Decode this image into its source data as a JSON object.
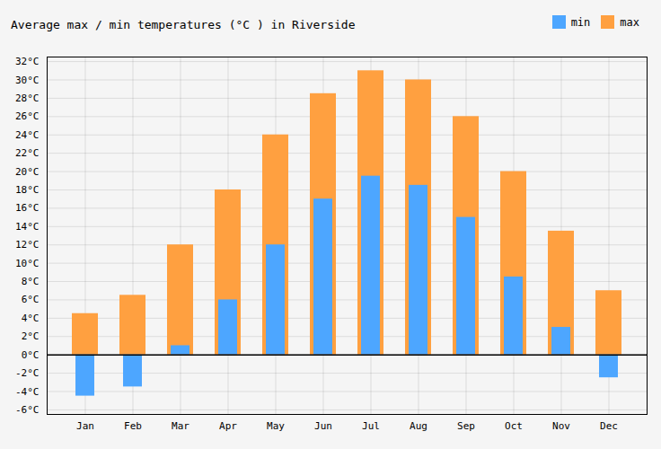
{
  "chart_data": {
    "type": "bar",
    "title": "Average max / min temperatures (°C ) in Riverside",
    "categories": [
      "Jan",
      "Feb",
      "Mar",
      "Apr",
      "May",
      "Jun",
      "Jul",
      "Aug",
      "Sep",
      "Oct",
      "Nov",
      "Dec"
    ],
    "series": [
      {
        "name": "min",
        "color": "#4da6ff",
        "values": [
          -4.5,
          -3.5,
          1,
          6,
          12,
          17,
          19.5,
          18.5,
          15,
          8.5,
          3,
          -2.5
        ]
      },
      {
        "name": "max",
        "color": "#ffa040",
        "values": [
          4.5,
          6.5,
          12,
          18,
          24,
          28.5,
          31,
          30,
          26,
          20,
          13.5,
          7
        ]
      }
    ],
    "ylim": [
      -6.5,
      32.5
    ],
    "yticks": [
      {
        "value": -6,
        "label": "-6°C"
      },
      {
        "value": -4,
        "label": "-4°C"
      },
      {
        "value": -2,
        "label": "-2°C"
      },
      {
        "value": 0,
        "label": "0°C"
      },
      {
        "value": 2,
        "label": "2°C"
      },
      {
        "value": 4,
        "label": "4°C"
      },
      {
        "value": 6,
        "label": "6°C"
      },
      {
        "value": 8,
        "label": "8°C"
      },
      {
        "value": 10,
        "label": "10°C"
      },
      {
        "value": 12,
        "label": "12°C"
      },
      {
        "value": 14,
        "label": "14°C"
      },
      {
        "value": 16,
        "label": "16°C"
      },
      {
        "value": 18,
        "label": "18°C"
      },
      {
        "value": 20,
        "label": "20°C"
      },
      {
        "value": 22,
        "label": "22°C"
      },
      {
        "value": 24,
        "label": "24°C"
      },
      {
        "value": 26,
        "label": "26°C"
      },
      {
        "value": 28,
        "label": "28°C"
      },
      {
        "value": 30,
        "label": "30°C"
      },
      {
        "value": 32,
        "label": "32°C"
      }
    ],
    "grid": true,
    "legend": "upper right"
  }
}
